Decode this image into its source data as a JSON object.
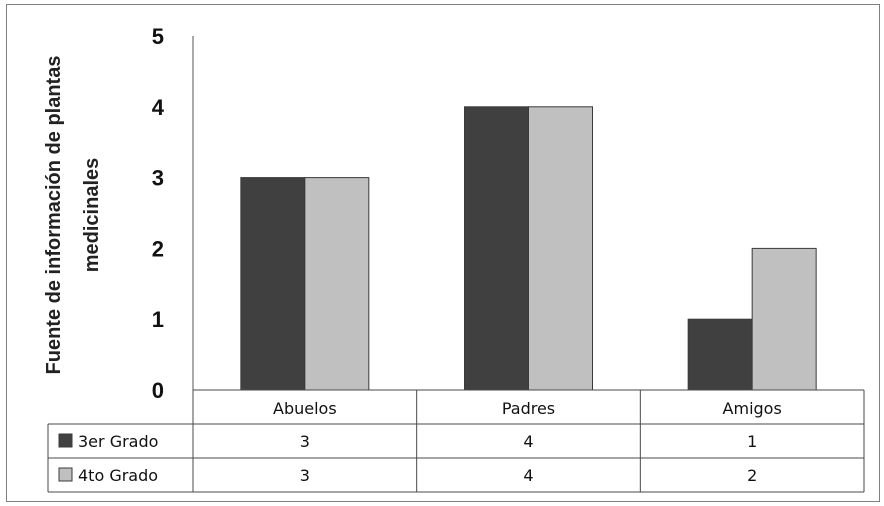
{
  "chart_data": {
    "type": "bar",
    "title": "",
    "xlabel": "",
    "ylabel_lines": [
      "Fuente de información de plantas",
      "medicinales"
    ],
    "ylim": [
      0,
      5
    ],
    "yticks": [
      "0",
      "1",
      "2",
      "3",
      "4",
      "5"
    ],
    "categories": [
      "Abuelos",
      "Padres",
      "Amigos"
    ],
    "series": [
      {
        "name": "3er Grado",
        "values": [
          3,
          4,
          1
        ],
        "color": "#404040"
      },
      {
        "name": "4to Grado",
        "values": [
          3,
          4,
          2
        ],
        "color": "#c0c0c0"
      }
    ],
    "grid": false,
    "legend": "data-table"
  }
}
